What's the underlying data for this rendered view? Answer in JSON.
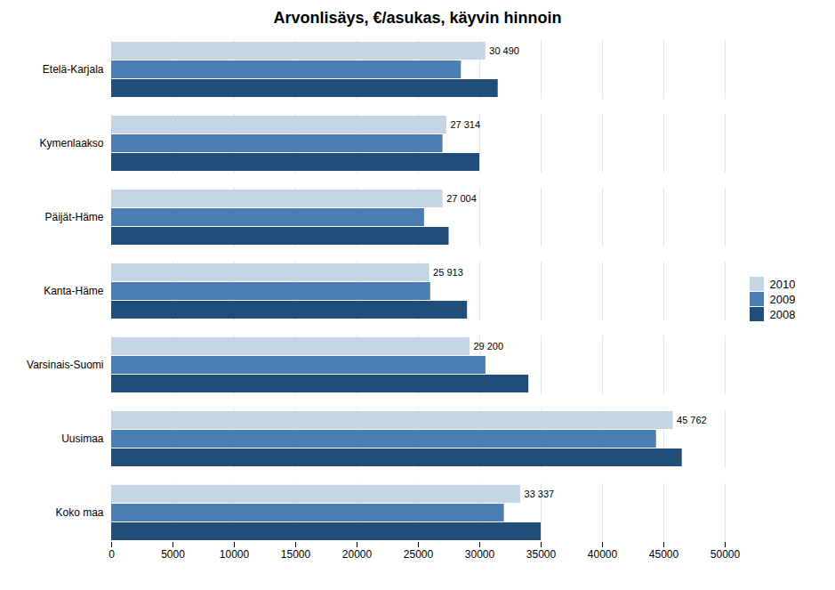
{
  "chart_data": {
    "type": "bar",
    "orientation": "horizontal",
    "title": "Arvonlisäys, €/asukas, käyvin hinnoin",
    "categories": [
      "Koko maa",
      "Uusimaa",
      "Varsinais-Suomi",
      "Kanta-Häme",
      "Päijät-Häme",
      "Kymenlaakso",
      "Etelä-Karjala"
    ],
    "series": [
      {
        "name": "2010",
        "color": "#c5d5e4",
        "values": [
          33337,
          45762,
          29200,
          25913,
          27004,
          27314,
          30490
        ],
        "value_labels": [
          "33 337",
          "45 762",
          "29 200",
          "25 913",
          "27 004",
          "27 314",
          "30 490"
        ]
      },
      {
        "name": "2009",
        "color": "#4a7fb5",
        "values": [
          32000,
          44400,
          30500,
          26000,
          25500,
          27000,
          28500
        ]
      },
      {
        "name": "2008",
        "color": "#1f4e79",
        "values": [
          35000,
          46500,
          34000,
          29000,
          27500,
          30000,
          31500
        ]
      }
    ],
    "xlim": [
      0,
      50000
    ],
    "xticks": [
      0,
      5000,
      10000,
      15000,
      20000,
      25000,
      30000,
      35000,
      40000,
      45000,
      50000
    ],
    "grid": true,
    "legend": "right"
  }
}
